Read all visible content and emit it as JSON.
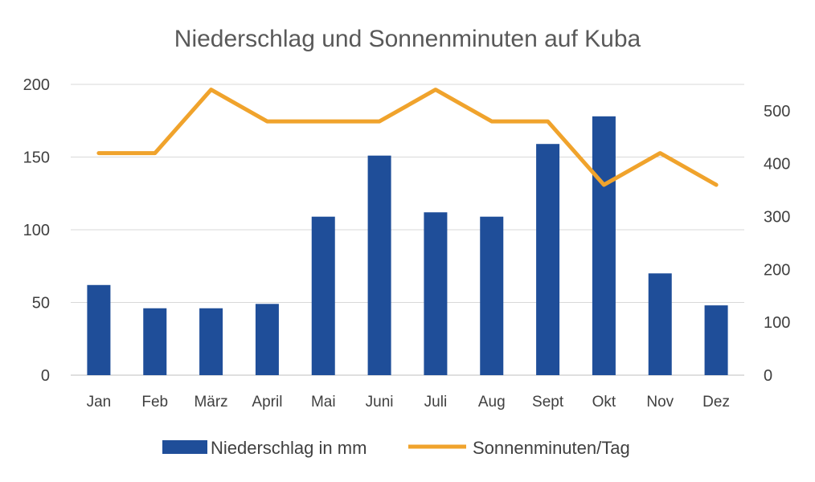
{
  "chart_data": {
    "type": "bar",
    "title": "Niederschlag und Sonnenminuten auf Kuba",
    "categories": [
      "Jan",
      "Feb",
      "März",
      "April",
      "Mai",
      "Juni",
      "Juli",
      "Aug",
      "Sept",
      "Okt",
      "Nov",
      "Dez"
    ],
    "series": [
      {
        "name": "Niederschlag in mm",
        "type": "bar",
        "axis": "left",
        "color": "#1f4e99",
        "values": [
          62,
          46,
          46,
          49,
          109,
          151,
          112,
          109,
          159,
          178,
          70,
          48
        ]
      },
      {
        "name": "Sonnenminuten/Tag",
        "type": "line",
        "axis": "right",
        "color": "#f0a32c",
        "values": [
          420,
          420,
          540,
          480,
          480,
          480,
          540,
          480,
          480,
          360,
          420,
          360
        ]
      }
    ],
    "y_left": {
      "min": 0,
      "max": 200,
      "ticks": [
        0,
        50,
        100,
        150,
        200
      ]
    },
    "y_right": {
      "min": 0,
      "max": 550,
      "ticks": [
        0,
        100,
        200,
        300,
        400,
        500
      ]
    },
    "grid": true,
    "legend_position": "bottom"
  }
}
